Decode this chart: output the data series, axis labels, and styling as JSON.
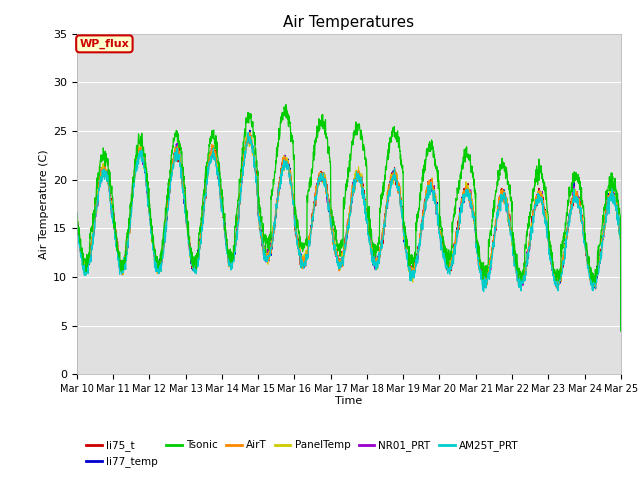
{
  "title": "Air Temperatures",
  "ylabel": "Air Temperature (C)",
  "xlabel": "Time",
  "ylim": [
    0,
    35
  ],
  "yticks": [
    0,
    5,
    10,
    15,
    20,
    25,
    30,
    35
  ],
  "bg_color": "#e0e0e0",
  "fig_color": "#ffffff",
  "n_days": 15,
  "lines": {
    "li75_t": {
      "color": "#cc0000",
      "lw": 0.8
    },
    "li77_temp": {
      "color": "#0000cc",
      "lw": 0.8
    },
    "Tsonic": {
      "color": "#00cc00",
      "lw": 0.9
    },
    "AirT": {
      "color": "#ff8800",
      "lw": 0.8
    },
    "PanelTemp": {
      "color": "#cccc00",
      "lw": 0.8
    },
    "NR01_PRT": {
      "color": "#9900cc",
      "lw": 0.8
    },
    "AM25T_PRT": {
      "color": "#00cccc",
      "lw": 0.9
    }
  },
  "wp_flux_box": {
    "text": "WP_flux",
    "facecolor": "#ffffcc",
    "edgecolor": "#cc0000",
    "textcolor": "#cc0000"
  },
  "legend_order": [
    "li75_t",
    "li77_temp",
    "Tsonic",
    "AirT",
    "PanelTemp",
    "NR01_PRT",
    "AM25T_PRT"
  ],
  "legend_ncol": 6
}
